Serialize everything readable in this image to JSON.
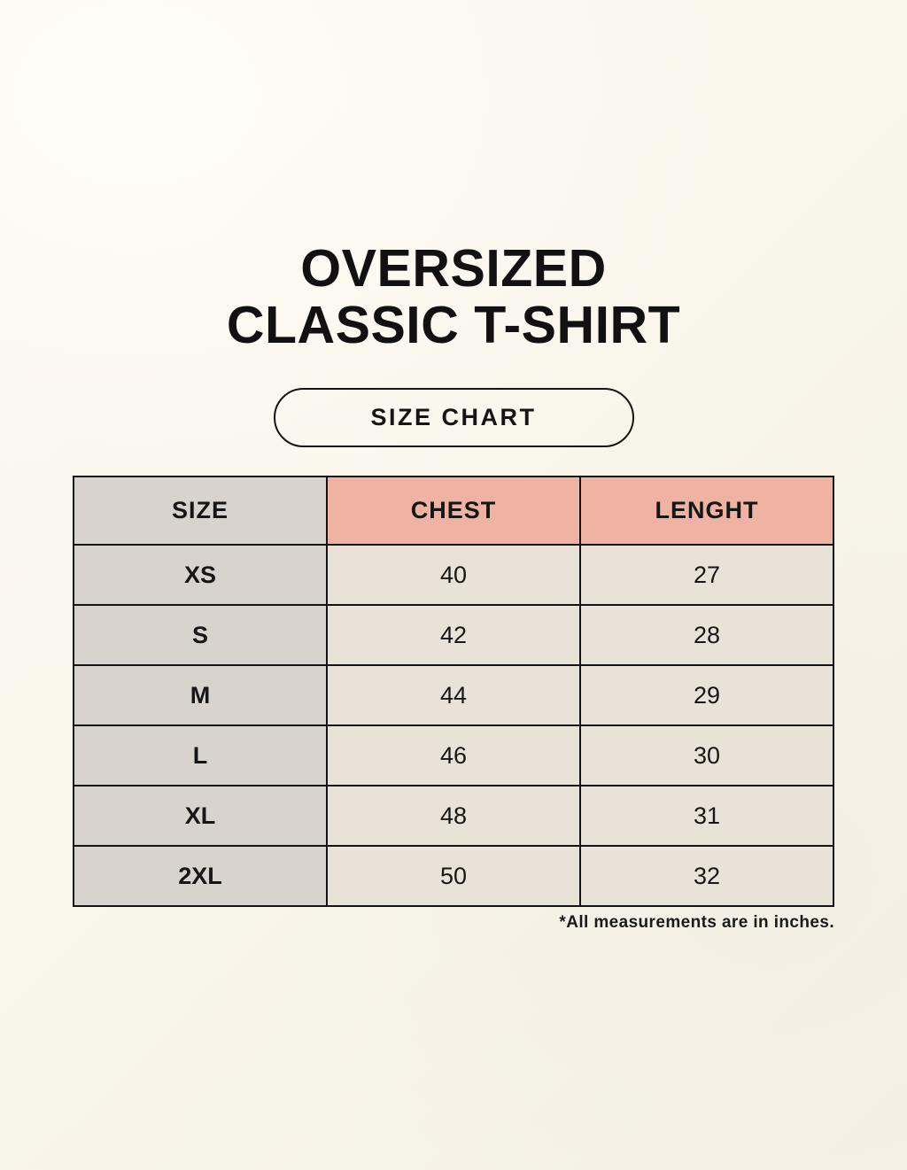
{
  "title": {
    "line1": "OVERSIZED",
    "line2": "CLASSIC T-SHIRT"
  },
  "size_chart_button": {
    "label": "SIZE CHART"
  },
  "table": {
    "columns": [
      "SIZE",
      "CHEST",
      "LENGHT"
    ],
    "rows": [
      {
        "size": "XS",
        "chest": "40",
        "length": "27"
      },
      {
        "size": "S",
        "chest": "42",
        "length": "28"
      },
      {
        "size": "M",
        "chest": "44",
        "length": "29"
      },
      {
        "size": "L",
        "chest": "46",
        "length": "30"
      },
      {
        "size": "XL",
        "chest": "48",
        "length": "31"
      },
      {
        "size": "2XL",
        "chest": "50",
        "length": "32"
      }
    ]
  },
  "footnote": "*All measurements are in inches.",
  "colors": {
    "background": "#f9f6ec",
    "size_column": "#d9d3ce",
    "header_accent_pink": "#eeb3a3",
    "data_cell": "#e9e2d6",
    "border": "#141414"
  }
}
